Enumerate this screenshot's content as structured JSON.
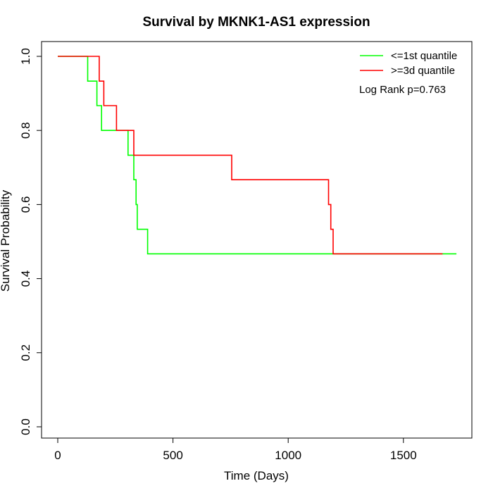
{
  "chart_data": {
    "type": "line",
    "title": "Survival by MKNK1-AS1 expression",
    "xlabel": "Time (Days)",
    "ylabel": "Survival Probability",
    "xlim": [
      0,
      1730
    ],
    "ylim": [
      0,
      1
    ],
    "x_ticks": [
      0,
      500,
      1000,
      1500
    ],
    "y_ticks": [
      0.0,
      0.2,
      0.4,
      0.6,
      0.8,
      1.0
    ],
    "x_tick_labels": [
      "0",
      "500",
      "1000",
      "1500"
    ],
    "y_tick_labels": [
      "0.0",
      "0.2",
      "0.4",
      "0.6",
      "0.8",
      "1.0"
    ],
    "grid": false,
    "legend_position": "top-right",
    "annotation": "Log Rank p=0.763",
    "series": [
      {
        "name": "<=1st quantile",
        "color": "#00ff00",
        "step_points": [
          [
            0,
            1.0
          ],
          [
            130,
            1.0
          ],
          [
            130,
            0.933
          ],
          [
            170,
            0.933
          ],
          [
            170,
            0.867
          ],
          [
            190,
            0.867
          ],
          [
            190,
            0.8
          ],
          [
            305,
            0.8
          ],
          [
            305,
            0.733
          ],
          [
            330,
            0.733
          ],
          [
            330,
            0.667
          ],
          [
            340,
            0.667
          ],
          [
            340,
            0.6
          ],
          [
            345,
            0.6
          ],
          [
            345,
            0.533
          ],
          [
            390,
            0.533
          ],
          [
            390,
            0.467
          ],
          [
            1730,
            0.467
          ]
        ]
      },
      {
        "name": ">=3d quantile",
        "color": "#ff0000",
        "step_points": [
          [
            0,
            1.0
          ],
          [
            180,
            1.0
          ],
          [
            180,
            0.933
          ],
          [
            200,
            0.933
          ],
          [
            200,
            0.867
          ],
          [
            255,
            0.867
          ],
          [
            255,
            0.8
          ],
          [
            330,
            0.8
          ],
          [
            330,
            0.733
          ],
          [
            755,
            0.733
          ],
          [
            755,
            0.667
          ],
          [
            1175,
            0.667
          ],
          [
            1175,
            0.6
          ],
          [
            1185,
            0.6
          ],
          [
            1185,
            0.533
          ],
          [
            1195,
            0.533
          ],
          [
            1195,
            0.467
          ],
          [
            1670,
            0.467
          ]
        ]
      }
    ]
  }
}
